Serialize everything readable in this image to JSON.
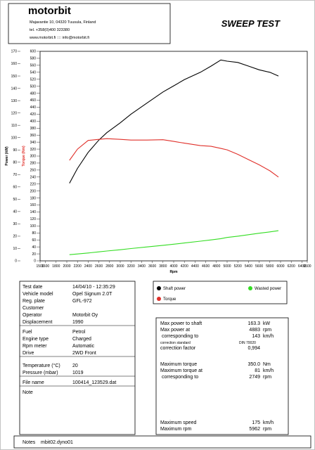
{
  "header": {
    "logo": "motorbit",
    "address": "Majavantie 10, 04320 Tuusula, Finland",
    "phone": "tel. +358(0)400 323380",
    "web": "www.motorbit.fi :::: info@motorbit.fi",
    "title": "SWEEP TEST"
  },
  "chart_data": {
    "type": "line",
    "x_label": "Rpm",
    "y_label": "Power (kW)",
    "y2_label": "Torque (Nm)",
    "x": [
      2050,
      2200,
      2400,
      2600,
      2749,
      3000,
      3200,
      3500,
      3800,
      4000,
      4200,
      4500,
      4700,
      4883,
      5000,
      5200,
      5400,
      5600,
      5800,
      5960
    ],
    "series": [
      {
        "name": "Shaft power",
        "color": "#000000",
        "values": [
          63,
          75,
          88,
          98,
          104,
          112,
          119,
          128,
          137,
          142,
          147,
          153,
          158,
          163,
          162,
          161,
          158,
          155,
          153,
          150
        ]
      },
      {
        "name": "Torque",
        "color": "#e0302a",
        "axis": "y2",
        "values": [
          288,
          320,
          345,
          348,
          350,
          348,
          346,
          346,
          347,
          342,
          337,
          330,
          328,
          322,
          318,
          305,
          290,
          275,
          258,
          240
        ]
      },
      {
        "name": "Wasted power",
        "color": "#33dd22",
        "values": [
          5,
          5.6,
          6.4,
          7.3,
          8,
          9,
          10,
          11.3,
          12.6,
          13.5,
          14.5,
          16,
          17,
          18,
          19,
          20,
          21.2,
          22.4,
          23.5,
          24.5
        ]
      }
    ],
    "xlim": [
      1500,
      6500
    ],
    "xticks": [
      1500,
      1600,
      1800,
      2000,
      2200,
      2400,
      2600,
      2800,
      3000,
      3200,
      3400,
      3600,
      3800,
      4000,
      4200,
      4400,
      4600,
      4800,
      5000,
      5200,
      5400,
      5600,
      5800,
      6000,
      6200,
      6400,
      6500
    ],
    "ylim": [
      0,
      170
    ],
    "yticks": [
      0,
      10,
      20,
      30,
      40,
      50,
      60,
      70,
      80,
      90,
      100,
      110,
      120,
      130,
      140,
      150,
      160,
      170
    ],
    "y2lim": [
      0,
      600
    ],
    "y2ticks": [
      0,
      20,
      40,
      60,
      80,
      100,
      120,
      140,
      160,
      180,
      200,
      220,
      240,
      260,
      280,
      300,
      320,
      340,
      360,
      380,
      400,
      420,
      440,
      460,
      480,
      500,
      520,
      540,
      560,
      580,
      600
    ],
    "grid": false
  },
  "info": {
    "groups": [
      [
        {
          "label": "Test date",
          "value": "14/04/10 - 12:35:29"
        },
        {
          "label": "Vehicle model",
          "value": "Opel Signum 2.0T"
        },
        {
          "label": "Reg. plate",
          "value": "GFL-972"
        },
        {
          "label": "Customer"
        },
        {
          "label": "Operator",
          "value": "Motorbit Oy"
        },
        {
          "label": "Displacement",
          "value": "1990"
        }
      ],
      [
        {
          "label": "Fuel",
          "value": "Petrol"
        },
        {
          "label": "Engine type",
          "value": "Charged"
        },
        {
          "label": "Rpm meter",
          "value": "Automatic"
        },
        {
          "label": "Drive",
          "value": "2WD Front"
        }
      ],
      [
        {
          "label": "Temperature (°C)",
          "value": "20"
        },
        {
          "label": "Pressure (mbar)",
          "value": "1019"
        }
      ],
      [
        {
          "label": "File name",
          "value": "100414_123529.dat"
        }
      ],
      [
        {
          "label": "Note"
        }
      ]
    ]
  },
  "results": {
    "groups": [
      [
        {
          "label": "Max power to shaft",
          "value": "163.3",
          "unit": "kW"
        },
        {
          "label": "Max power at",
          "value": "4883",
          "unit": "rpm"
        },
        {
          "label": " corresponding to",
          "value": "143",
          "unit": "km/h"
        },
        {
          "label": "correction standard",
          "unit": "DIN 70020"
        },
        {
          "label": "correction factor",
          "value": "0,994"
        }
      ],
      [
        {
          "label": "Maximum torque",
          "value": "350.0",
          "unit": "Nm"
        },
        {
          "label": "Maximum torque at",
          "value": "81",
          "unit": "km/h"
        },
        {
          "label": " corresponding to",
          "value": "2749",
          "unit": "rpm"
        }
      ],
      [
        {
          "label": "Maximum speed",
          "value": "175",
          "unit": "km/h"
        },
        {
          "label": "Maximum rpm",
          "value": "5962",
          "unit": "rpm"
        }
      ]
    ]
  },
  "notes": {
    "label": "Notes",
    "value": "mbit02.dyno01"
  }
}
